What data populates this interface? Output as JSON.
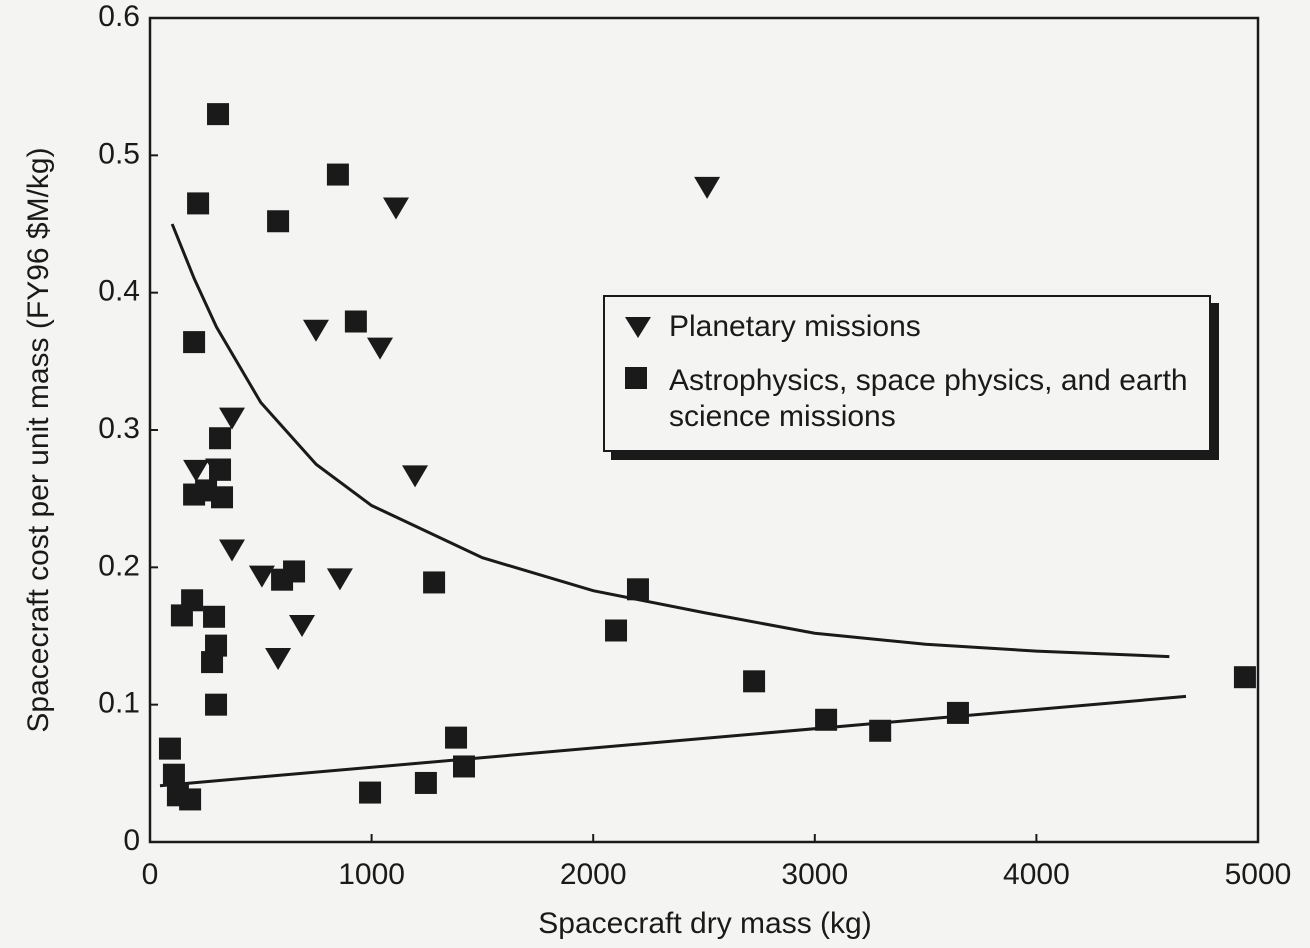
{
  "chart_data": {
    "type": "scatter",
    "xlabel": "Spacecraft dry mass (kg)",
    "ylabel": "Spacecraft cost per unit mass (FY96 $M/kg)",
    "xlim": [
      0,
      5000
    ],
    "ylim": [
      0,
      0.6
    ],
    "xticks": [
      0,
      1000,
      2000,
      3000,
      4000,
      5000
    ],
    "yticks": [
      0,
      0.1,
      0.2,
      0.3,
      0.4,
      0.5,
      0.6
    ],
    "legend": "upper right",
    "series": [
      {
        "name": "Planetary missions",
        "marker": "triangle",
        "color": "#1a1a1a",
        "x": [
          208,
          307,
          370,
          370,
          505,
          578,
          686,
          749,
          857,
          1038,
          1110,
          1196,
          2514
        ],
        "values": [
          0.271,
          0.272,
          0.309,
          0.213,
          0.194,
          0.134,
          0.158,
          0.373,
          0.192,
          0.36,
          0.462,
          0.267,
          0.477
        ]
      },
      {
        "name": "Astrophysics, space physics, and earth science missions",
        "marker": "square",
        "color": "#1a1a1a",
        "x": [
          307,
          217,
          848,
          578,
          929,
          199,
          316,
          316,
          325,
          199,
          253,
          190,
          144,
          289,
          298,
          280,
          298,
          596,
          650,
          1282,
          2103,
          2202,
          2726,
          3051,
          3295,
          3646,
          4941,
          90,
          108,
          126,
          181,
          993,
          1245,
          1381,
          1417
        ],
        "values": [
          0.53,
          0.465,
          0.486,
          0.452,
          0.379,
          0.364,
          0.294,
          0.271,
          0.251,
          0.253,
          0.256,
          0.176,
          0.165,
          0.164,
          0.143,
          0.131,
          0.1,
          0.191,
          0.197,
          0.189,
          0.154,
          0.184,
          0.117,
          0.089,
          0.081,
          0.094,
          0.12,
          0.068,
          0.049,
          0.034,
          0.031,
          0.036,
          0.043,
          0.076,
          0.055
        ]
      },
      {
        "mode": "line",
        "color": "#1a1a1a",
        "x": [
          100,
          200,
          300,
          500,
          750,
          1000,
          1500,
          2000,
          2500,
          3000,
          3500,
          4000,
          4600
        ],
        "values": [
          0.45,
          0.41,
          0.375,
          0.32,
          0.275,
          0.245,
          0.207,
          0.183,
          0.167,
          0.152,
          0.144,
          0.139,
          0.135
        ]
      },
      {
        "mode": "line",
        "color": "#1a1a1a",
        "x": [
          45,
          4675
        ],
        "values": [
          0.041,
          0.106
        ]
      }
    ]
  }
}
